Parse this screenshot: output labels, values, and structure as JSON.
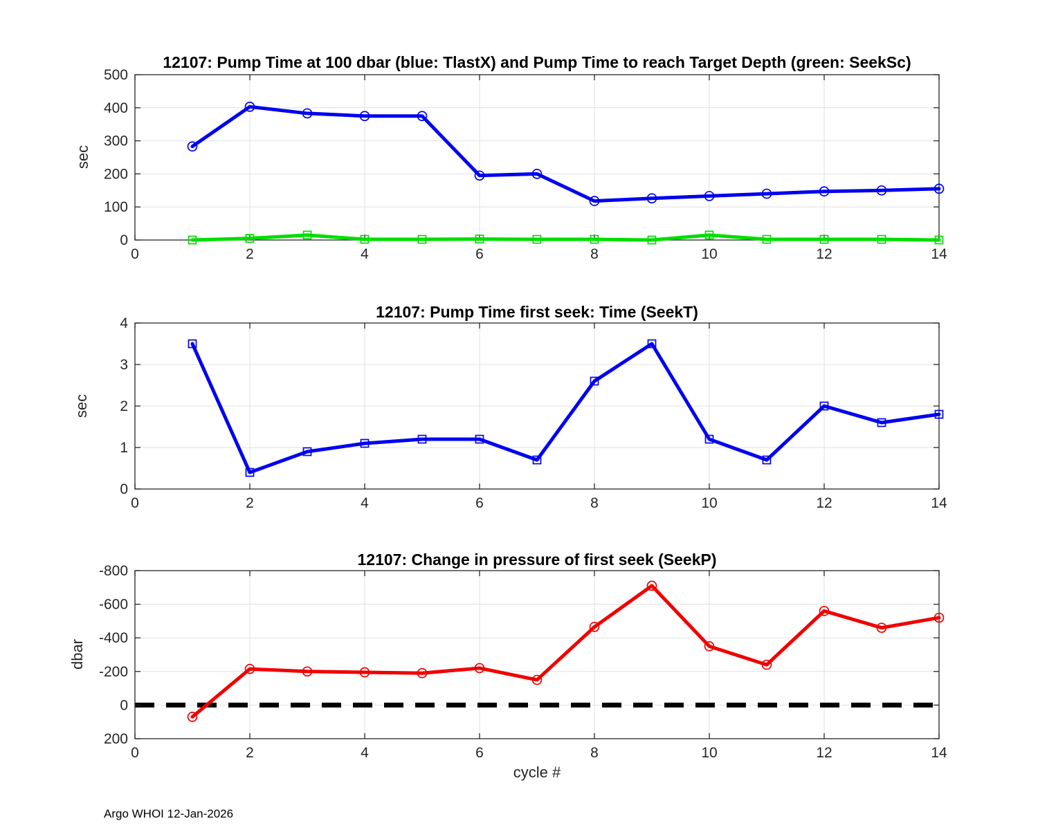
{
  "figure": {
    "footer": "Argo WHOI 12-Jan-2026",
    "background_color": "#ffffff",
    "grid_color": "#e0e0e0",
    "axis_color": "#262626",
    "tick_label_color": "#262626"
  },
  "chart_data": [
    {
      "id": "pump-time-100dbar",
      "type": "line",
      "title": "12107:  Pump Time at 100 dbar (blue: TlastX) and Pump Time to reach Target Depth (green: SeekSc)",
      "xlabel": "",
      "ylabel": "sec",
      "xlim": [
        0,
        14
      ],
      "ylim": [
        0,
        500
      ],
      "xticks": [
        0,
        2,
        4,
        6,
        8,
        10,
        12,
        14
      ],
      "yticks": [
        0,
        100,
        200,
        300,
        400,
        500
      ],
      "grid": true,
      "legend_position": "none",
      "x": [
        1,
        2,
        3,
        4,
        5,
        6,
        7,
        8,
        9,
        10,
        11,
        12,
        13,
        14
      ],
      "series": [
        {
          "name": "TlastX",
          "color": "#0000f0",
          "marker": "circle",
          "values": [
            283,
            403,
            383,
            375,
            375,
            195,
            200,
            118,
            126,
            133,
            140,
            147,
            150,
            155
          ]
        },
        {
          "name": "SeekSc",
          "color": "#00dd00",
          "marker": "square",
          "values": [
            0,
            5,
            15,
            2,
            2,
            3,
            2,
            2,
            0,
            15,
            2,
            2,
            2,
            0
          ]
        }
      ]
    },
    {
      "id": "seek-time",
      "type": "line",
      "title": "12107: Pump Time first seek: Time (SeekT)",
      "xlabel": "",
      "ylabel": "sec",
      "xlim": [
        0,
        14
      ],
      "ylim": [
        0,
        4
      ],
      "xticks": [
        0,
        2,
        4,
        6,
        8,
        10,
        12,
        14
      ],
      "yticks": [
        0,
        1,
        2,
        3,
        4
      ],
      "grid": true,
      "legend_position": "none",
      "x": [
        1,
        2,
        3,
        4,
        5,
        6,
        7,
        8,
        9,
        10,
        11,
        12,
        13,
        14
      ],
      "series": [
        {
          "name": "SeekT",
          "color": "#0000f0",
          "marker": "square",
          "values": [
            3.5,
            0.4,
            0.9,
            1.1,
            1.2,
            1.2,
            0.7,
            2.6,
            3.5,
            1.2,
            0.7,
            2.0,
            1.6,
            1.8
          ]
        }
      ]
    },
    {
      "id": "seek-pressure",
      "type": "line",
      "title": "12107: Change in pressure of first seek (SeekP)",
      "xlabel": "cycle #",
      "ylabel": "dbar",
      "xlim": [
        0,
        14
      ],
      "ylim": [
        200,
        -800
      ],
      "y_axis_reversed": true,
      "xticks": [
        0,
        2,
        4,
        6,
        8,
        10,
        12,
        14
      ],
      "yticks": [
        -800,
        -600,
        -400,
        -200,
        0,
        200
      ],
      "grid": true,
      "legend_position": "none",
      "x": [
        1,
        2,
        3,
        4,
        5,
        6,
        7,
        8,
        9,
        10,
        11,
        12,
        13,
        14
      ],
      "series": [
        {
          "name": "SeekP",
          "color": "#f10000",
          "marker": "circle",
          "values": [
            70,
            -215,
            -200,
            -195,
            -190,
            -220,
            -150,
            -465,
            -710,
            -350,
            -240,
            -560,
            -460,
            -520
          ]
        }
      ],
      "zero_line": {
        "value": 0,
        "style": "dashed",
        "color": "#000000"
      }
    }
  ]
}
